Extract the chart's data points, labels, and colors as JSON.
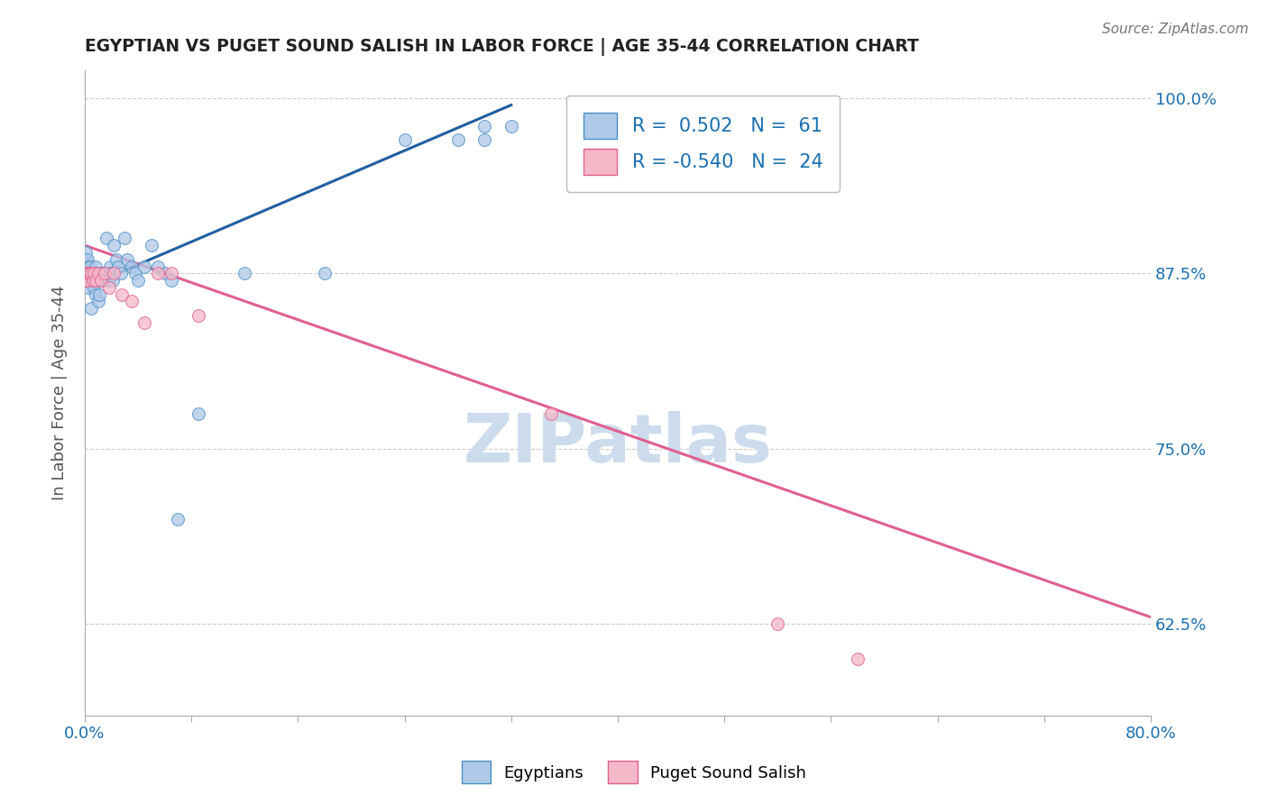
{
  "title": "EGYPTIAN VS PUGET SOUND SALISH IN LABOR FORCE | AGE 35-44 CORRELATION CHART",
  "source_text": "Source: ZipAtlas.com",
  "ylabel": "In Labor Force | Age 35-44",
  "xlim": [
    0.0,
    0.8
  ],
  "ylim": [
    0.56,
    1.02
  ],
  "xticks": [
    0.0,
    0.08,
    0.16,
    0.24,
    0.32,
    0.4,
    0.48,
    0.56,
    0.64,
    0.72,
    0.8
  ],
  "xtick_labels": [
    "0.0%",
    "",
    "",
    "",
    "",
    "",
    "",
    "",
    "",
    "",
    "80.0%"
  ],
  "ytick_labels": [
    "62.5%",
    "75.0%",
    "87.5%",
    "100.0%"
  ],
  "yticks": [
    0.625,
    0.75,
    0.875,
    1.0
  ],
  "r_egyptian": 0.502,
  "n_egyptian": 61,
  "r_salish": -0.54,
  "n_salish": 24,
  "blue_fill": "#aec8e8",
  "blue_edge": "#4a90c4",
  "pink_fill": "#f4b8c8",
  "pink_edge": "#e06090",
  "blue_line_color": "#2060a0",
  "pink_line_color": "#e06090",
  "legend_text_color": "#1a6faf",
  "watermark_color": "#ccdcec",
  "background_color": "#ffffff",
  "grid_color": "#cccccc",
  "title_color": "#222222",
  "right_ytick_color": "#1a6faf",
  "xtick_color": "#1a6faf",
  "egyptian_scatter_x": [
    0.001,
    0.001,
    0.001,
    0.001,
    0.001,
    0.002,
    0.002,
    0.002,
    0.002,
    0.003,
    0.003,
    0.003,
    0.003,
    0.004,
    0.004,
    0.005,
    0.005,
    0.005,
    0.006,
    0.006,
    0.007,
    0.007,
    0.008,
    0.008,
    0.009,
    0.01,
    0.01,
    0.011,
    0.011,
    0.012,
    0.013,
    0.015,
    0.016,
    0.017,
    0.018,
    0.019,
    0.02,
    0.021,
    0.022,
    0.024,
    0.025,
    0.027,
    0.03,
    0.032,
    0.035,
    0.038,
    0.04,
    0.045,
    0.05,
    0.055,
    0.06,
    0.065,
    0.07,
    0.085,
    0.12,
    0.18,
    0.24,
    0.28,
    0.3,
    0.3,
    0.32
  ],
  "egyptian_scatter_y": [
    0.875,
    0.88,
    0.885,
    0.89,
    0.875,
    0.875,
    0.88,
    0.885,
    0.87,
    0.875,
    0.88,
    0.87,
    0.865,
    0.875,
    0.88,
    0.875,
    0.87,
    0.85,
    0.87,
    0.875,
    0.87,
    0.865,
    0.88,
    0.86,
    0.875,
    0.87,
    0.855,
    0.875,
    0.86,
    0.875,
    0.875,
    0.87,
    0.9,
    0.875,
    0.87,
    0.88,
    0.875,
    0.87,
    0.895,
    0.885,
    0.88,
    0.875,
    0.9,
    0.885,
    0.88,
    0.875,
    0.87,
    0.88,
    0.895,
    0.88,
    0.875,
    0.87,
    0.7,
    0.775,
    0.875,
    0.875,
    0.97,
    0.97,
    0.98,
    0.97,
    0.98
  ],
  "salish_scatter_x": [
    0.001,
    0.001,
    0.002,
    0.002,
    0.003,
    0.004,
    0.005,
    0.006,
    0.007,
    0.008,
    0.01,
    0.012,
    0.015,
    0.018,
    0.022,
    0.028,
    0.035,
    0.045,
    0.055,
    0.065,
    0.085,
    0.35,
    0.52,
    0.58
  ],
  "salish_scatter_y": [
    0.875,
    0.87,
    0.875,
    0.87,
    0.875,
    0.875,
    0.875,
    0.87,
    0.875,
    0.87,
    0.875,
    0.87,
    0.875,
    0.865,
    0.875,
    0.86,
    0.855,
    0.84,
    0.875,
    0.875,
    0.845,
    0.775,
    0.625,
    0.6
  ],
  "blue_trend_x": [
    0.0,
    0.32
  ],
  "blue_trend_y": [
    0.865,
    0.995
  ],
  "pink_trend_x": [
    0.0,
    0.8
  ],
  "pink_trend_y": [
    0.895,
    0.63
  ]
}
